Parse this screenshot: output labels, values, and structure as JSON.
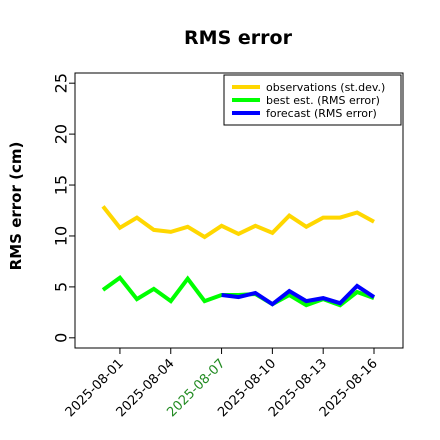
{
  "chart_data": {
    "type": "line",
    "title": "RMS error",
    "xlabel": "",
    "ylabel": "RMS error (cm)",
    "ylim": [
      -1,
      26
    ],
    "yticks": [
      0,
      5,
      10,
      15,
      20,
      25
    ],
    "ytick_labels": [
      "0",
      "5",
      "10",
      "15",
      "20",
      "25"
    ],
    "x": [
      "2025-07-31",
      "2025-08-01",
      "2025-08-02",
      "2025-08-03",
      "2025-08-04",
      "2025-08-05",
      "2025-08-06",
      "2025-08-07",
      "2025-08-08",
      "2025-08-09",
      "2025-08-10",
      "2025-08-11",
      "2025-08-12",
      "2025-08-13",
      "2025-08-14",
      "2025-08-15",
      "2025-08-16"
    ],
    "xtick_labels": [
      "2025-08-01",
      "2025-08-04",
      "2025-08-07",
      "2025-08-10",
      "2025-08-13",
      "2025-08-16"
    ],
    "highlighted_xtick": "2025-08-07",
    "highlight_color": "#228B22",
    "legend_position": "top-right",
    "grid": false,
    "series": [
      {
        "name": "observations (st.dev.)",
        "color": "#FFD700",
        "values": [
          12.9,
          10.8,
          11.8,
          10.6,
          10.4,
          10.9,
          9.9,
          11.0,
          10.2,
          11.0,
          10.3,
          12.0,
          10.9,
          11.8,
          11.8,
          12.3,
          11.4
        ]
      },
      {
        "name": "best est. (RMS error)",
        "color": "#00FF00",
        "values": [
          4.7,
          5.9,
          3.8,
          4.8,
          3.6,
          5.8,
          3.6,
          4.2,
          4.2,
          4.3,
          3.3,
          4.2,
          3.2,
          3.8,
          3.2,
          4.5,
          3.9
        ]
      },
      {
        "name": "forecast (RMS error)",
        "color": "#0000FF",
        "values": [
          null,
          null,
          null,
          null,
          null,
          null,
          null,
          4.2,
          4.0,
          4.4,
          3.3,
          4.6,
          3.6,
          3.9,
          3.4,
          5.1,
          4.0
        ]
      }
    ]
  }
}
